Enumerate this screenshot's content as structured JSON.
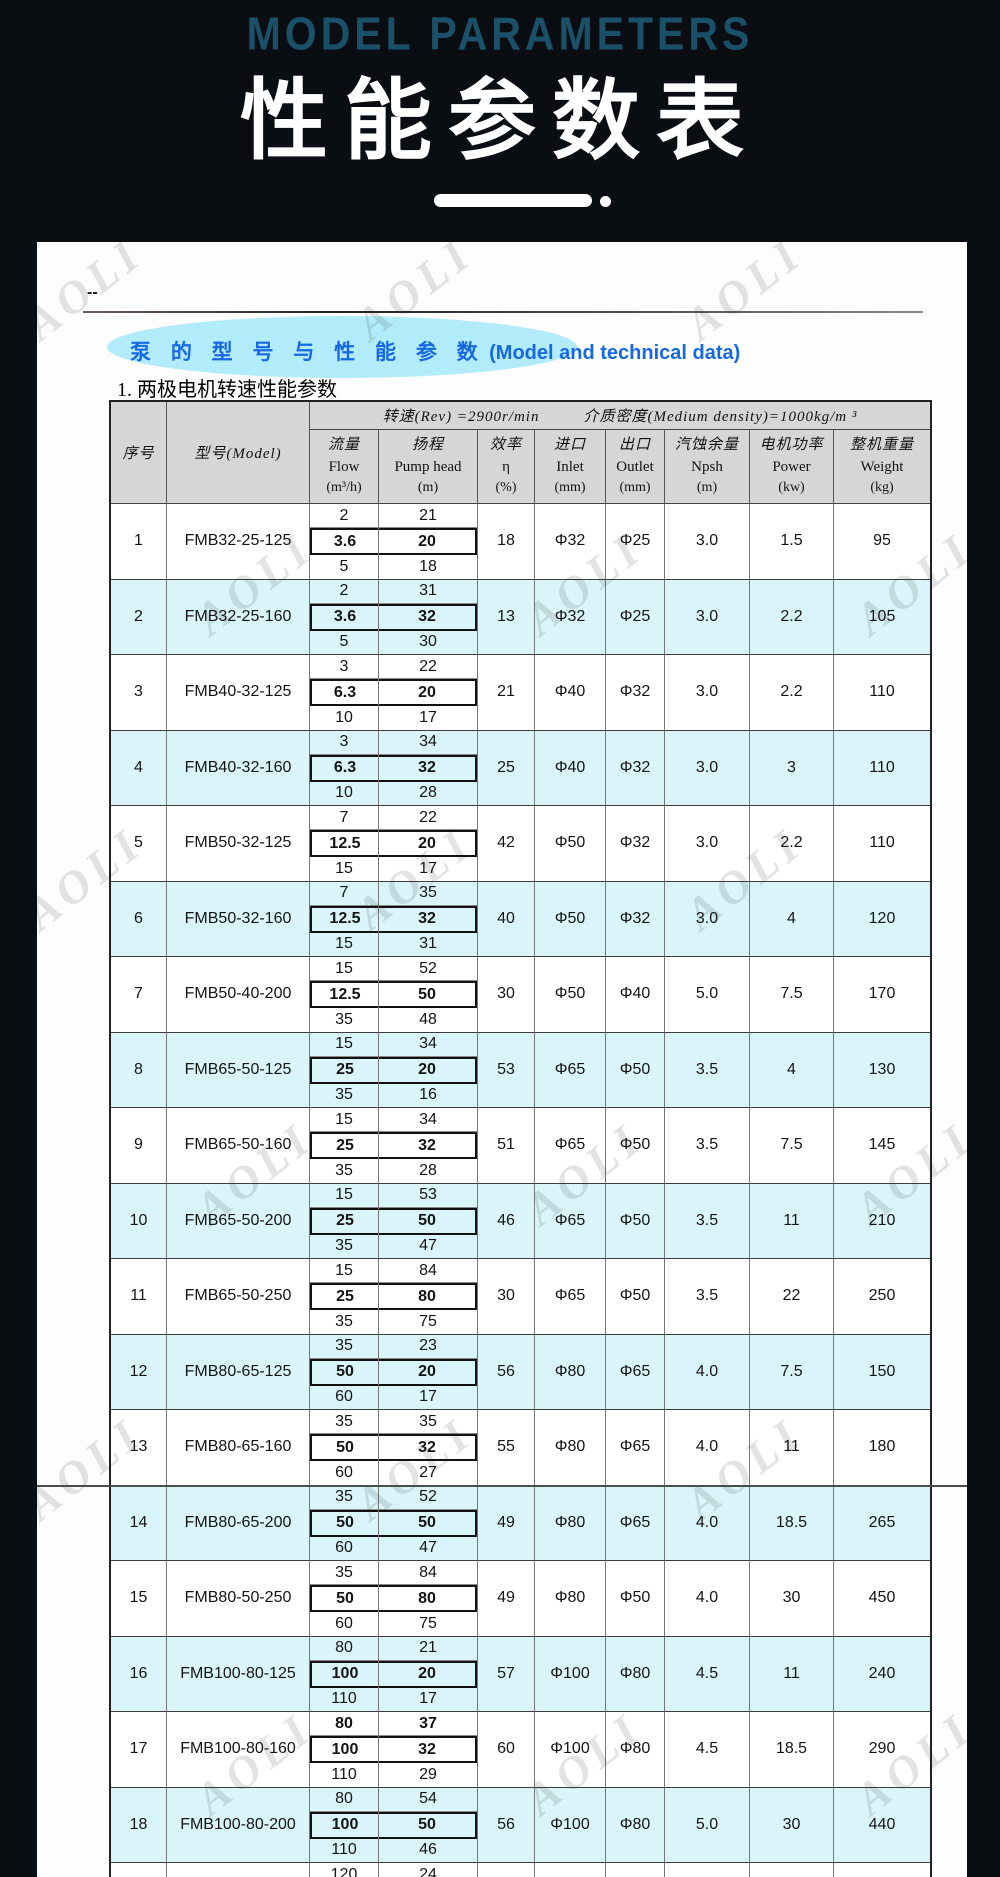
{
  "header": {
    "subtitle_en": "MODEL PARAMETERS",
    "title_zh": "性能参数表"
  },
  "page": {
    "dash": "--",
    "watermark": "AOLI",
    "section_title_zh": "泵 的 型 号 与 性 能 参 数",
    "section_title_en": "(Model and technical data)",
    "subsection": "1.  两极电机转速性能参数"
  },
  "colors": {
    "banner_text": "#1b5069",
    "accent_blue": "#1668e3",
    "ellipse_cyan": "#b2ebf9",
    "header_gray": "#d6d6d6",
    "row_shade_cyan": "#d9f5fa",
    "page_black": "#0a0d12"
  },
  "table": {
    "meta_left": "转速(Rev) =2900r/min",
    "meta_right": "介质密度(Medium density)=1000kg/m ³",
    "columns": [
      {
        "zh": "序号",
        "en": "",
        "unit": ""
      },
      {
        "zh": "型号(Model)",
        "en": "",
        "unit": ""
      },
      {
        "zh": "流量",
        "en": "Flow",
        "unit": "(m³/h)"
      },
      {
        "zh": "扬程",
        "en": "Pump head",
        "unit": "(m)"
      },
      {
        "zh": "效率",
        "en": "η",
        "unit": "(%)"
      },
      {
        "zh": "进口",
        "en": "Inlet",
        "unit": "(mm)"
      },
      {
        "zh": "出口",
        "en": "Outlet",
        "unit": "(mm)"
      },
      {
        "zh": "汽蚀余量",
        "en": "Npsh",
        "unit": "(m)"
      },
      {
        "zh": "电机功率",
        "en": "Power",
        "unit": "(kw)"
      },
      {
        "zh": "整机重量",
        "en": "Weight",
        "unit": "(kg)"
      }
    ],
    "rows": [
      {
        "no": "1",
        "model": "FMB32-25-125",
        "shade": false,
        "points": [
          {
            "flow": "2",
            "head": "21",
            "bold": false
          },
          {
            "flow": "3.6",
            "head": "20",
            "bold": true
          },
          {
            "flow": "5",
            "head": "18",
            "bold": false
          }
        ],
        "eff": "18",
        "inlet": "Φ32",
        "outlet": "Φ25",
        "npsh": "3.0",
        "power": "1.5",
        "weight": "95"
      },
      {
        "no": "2",
        "model": "FMB32-25-160",
        "shade": true,
        "points": [
          {
            "flow": "2",
            "head": "31",
            "bold": false
          },
          {
            "flow": "3.6",
            "head": "32",
            "bold": true
          },
          {
            "flow": "5",
            "head": "30",
            "bold": false
          }
        ],
        "eff": "13",
        "inlet": "Φ32",
        "outlet": "Φ25",
        "npsh": "3.0",
        "power": "2.2",
        "weight": "105"
      },
      {
        "no": "3",
        "model": "FMB40-32-125",
        "shade": false,
        "points": [
          {
            "flow": "3",
            "head": "22",
            "bold": false
          },
          {
            "flow": "6.3",
            "head": "20",
            "bold": true
          },
          {
            "flow": "10",
            "head": "17",
            "bold": false
          }
        ],
        "eff": "21",
        "inlet": "Φ40",
        "outlet": "Φ32",
        "npsh": "3.0",
        "power": "2.2",
        "weight": "110"
      },
      {
        "no": "4",
        "model": "FMB40-32-160",
        "shade": true,
        "points": [
          {
            "flow": "3",
            "head": "34",
            "bold": false
          },
          {
            "flow": "6.3",
            "head": "32",
            "bold": true
          },
          {
            "flow": "10",
            "head": "28",
            "bold": false
          }
        ],
        "eff": "25",
        "inlet": "Φ40",
        "outlet": "Φ32",
        "npsh": "3.0",
        "power": "3",
        "weight": "110"
      },
      {
        "no": "5",
        "model": "FMB50-32-125",
        "shade": false,
        "points": [
          {
            "flow": "7",
            "head": "22",
            "bold": false
          },
          {
            "flow": "12.5",
            "head": "20",
            "bold": true
          },
          {
            "flow": "15",
            "head": "17",
            "bold": false
          }
        ],
        "eff": "42",
        "inlet": "Φ50",
        "outlet": "Φ32",
        "npsh": "3.0",
        "power": "2.2",
        "weight": "110"
      },
      {
        "no": "6",
        "model": "FMB50-32-160",
        "shade": true,
        "points": [
          {
            "flow": "7",
            "head": "35",
            "bold": false
          },
          {
            "flow": "12.5",
            "head": "32",
            "bold": true
          },
          {
            "flow": "15",
            "head": "31",
            "bold": false
          }
        ],
        "eff": "40",
        "inlet": "Φ50",
        "outlet": "Φ32",
        "npsh": "3.0",
        "power": "4",
        "weight": "120"
      },
      {
        "no": "7",
        "model": "FMB50-40-200",
        "shade": false,
        "points": [
          {
            "flow": "15",
            "head": "52",
            "bold": false
          },
          {
            "flow": "12.5",
            "head": "50",
            "bold": true
          },
          {
            "flow": "35",
            "head": "48",
            "bold": false
          }
        ],
        "eff": "30",
        "inlet": "Φ50",
        "outlet": "Φ40",
        "npsh": "5.0",
        "power": "7.5",
        "weight": "170"
      },
      {
        "no": "8",
        "model": "FMB65-50-125",
        "shade": true,
        "points": [
          {
            "flow": "15",
            "head": "34",
            "bold": false
          },
          {
            "flow": "25",
            "head": "20",
            "bold": true
          },
          {
            "flow": "35",
            "head": "16",
            "bold": false
          }
        ],
        "eff": "53",
        "inlet": "Φ65",
        "outlet": "Φ50",
        "npsh": "3.5",
        "power": "4",
        "weight": "130"
      },
      {
        "no": "9",
        "model": "FMB65-50-160",
        "shade": false,
        "points": [
          {
            "flow": "15",
            "head": "34",
            "bold": false
          },
          {
            "flow": "25",
            "head": "32",
            "bold": true
          },
          {
            "flow": "35",
            "head": "28",
            "bold": false
          }
        ],
        "eff": "51",
        "inlet": "Φ65",
        "outlet": "Φ50",
        "npsh": "3.5",
        "power": "7.5",
        "weight": "145"
      },
      {
        "no": "10",
        "model": "FMB65-50-200",
        "shade": true,
        "points": [
          {
            "flow": "15",
            "head": "53",
            "bold": false
          },
          {
            "flow": "25",
            "head": "50",
            "bold": true
          },
          {
            "flow": "35",
            "head": "47",
            "bold": false
          }
        ],
        "eff": "46",
        "inlet": "Φ65",
        "outlet": "Φ50",
        "npsh": "3.5",
        "power": "11",
        "weight": "210"
      },
      {
        "no": "11",
        "model": "FMB65-50-250",
        "shade": false,
        "points": [
          {
            "flow": "15",
            "head": "84",
            "bold": false
          },
          {
            "flow": "25",
            "head": "80",
            "bold": true
          },
          {
            "flow": "35",
            "head": "75",
            "bold": false
          }
        ],
        "eff": "30",
        "inlet": "Φ65",
        "outlet": "Φ50",
        "npsh": "3.5",
        "power": "22",
        "weight": "250"
      },
      {
        "no": "12",
        "model": "FMB80-65-125",
        "shade": true,
        "points": [
          {
            "flow": "35",
            "head": "23",
            "bold": false
          },
          {
            "flow": "50",
            "head": "20",
            "bold": true
          },
          {
            "flow": "60",
            "head": "17",
            "bold": false
          }
        ],
        "eff": "56",
        "inlet": "Φ80",
        "outlet": "Φ65",
        "npsh": "4.0",
        "power": "7.5",
        "weight": "150"
      },
      {
        "no": "13",
        "model": "FMB80-65-160",
        "shade": false,
        "points": [
          {
            "flow": "35",
            "head": "35",
            "bold": false
          },
          {
            "flow": "50",
            "head": "32",
            "bold": true
          },
          {
            "flow": "60",
            "head": "27",
            "bold": false
          }
        ],
        "eff": "55",
        "inlet": "Φ80",
        "outlet": "Φ65",
        "npsh": "4.0",
        "power": "11",
        "weight": "180"
      },
      {
        "no": "14",
        "model": "FMB80-65-200",
        "shade": true,
        "points": [
          {
            "flow": "35",
            "head": "52",
            "bold": false
          },
          {
            "flow": "50",
            "head": "50",
            "bold": true
          },
          {
            "flow": "60",
            "head": "47",
            "bold": false
          }
        ],
        "eff": "49",
        "inlet": "Φ80",
        "outlet": "Φ65",
        "npsh": "4.0",
        "power": "18.5",
        "weight": "265"
      },
      {
        "no": "15",
        "model": "FMB80-50-250",
        "shade": false,
        "points": [
          {
            "flow": "35",
            "head": "84",
            "bold": false
          },
          {
            "flow": "50",
            "head": "80",
            "bold": true
          },
          {
            "flow": "60",
            "head": "75",
            "bold": false
          }
        ],
        "eff": "49",
        "inlet": "Φ80",
        "outlet": "Φ50",
        "npsh": "4.0",
        "power": "30",
        "weight": "450"
      },
      {
        "no": "16",
        "model": "FMB100-80-125",
        "shade": true,
        "points": [
          {
            "flow": "80",
            "head": "21",
            "bold": false
          },
          {
            "flow": "100",
            "head": "20",
            "bold": true
          },
          {
            "flow": "110",
            "head": "17",
            "bold": false
          }
        ],
        "eff": "57",
        "inlet": "Φ100",
        "outlet": "Φ80",
        "npsh": "4.5",
        "power": "11",
        "weight": "240"
      },
      {
        "no": "17",
        "model": "FMB100-80-160",
        "shade": false,
        "points": [
          {
            "flow": "80",
            "head": "37",
            "bold": true
          },
          {
            "flow": "100",
            "head": "32",
            "bold": true
          },
          {
            "flow": "110",
            "head": "29",
            "bold": false
          }
        ],
        "eff": "60",
        "inlet": "Φ100",
        "outlet": "Φ80",
        "npsh": "4.5",
        "power": "18.5",
        "weight": "290"
      },
      {
        "no": "18",
        "model": "FMB100-80-200",
        "shade": true,
        "points": [
          {
            "flow": "80",
            "head": "54",
            "bold": false
          },
          {
            "flow": "100",
            "head": "50",
            "bold": true
          },
          {
            "flow": "110",
            "head": "46",
            "bold": false
          }
        ],
        "eff": "56",
        "inlet": "Φ100",
        "outlet": "Φ80",
        "npsh": "5.0",
        "power": "30",
        "weight": "440"
      },
      {
        "no": "",
        "model": "",
        "shade": false,
        "points": [
          {
            "flow": "120",
            "head": "24",
            "bold": false
          },
          {
            "flow": "",
            "head": "",
            "bold": false
          },
          {
            "flow": "",
            "head": "",
            "bold": false
          }
        ],
        "eff": "",
        "inlet": "",
        "outlet": "",
        "npsh": "",
        "power": "",
        "weight": ""
      }
    ]
  }
}
